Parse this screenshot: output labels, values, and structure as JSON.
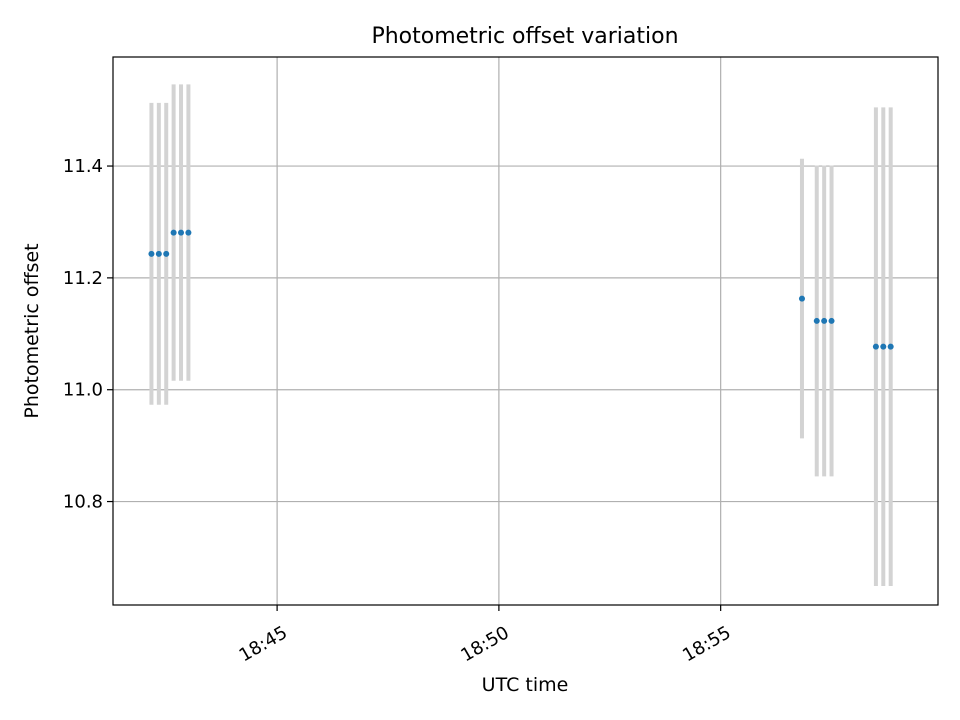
{
  "chart_data": {
    "type": "scatter",
    "title": "Photometric offset variation",
    "xlabel": "UTC time",
    "ylabel": "Photometric offset",
    "x_tick_labels": [
      "18:45",
      "18:50",
      "18:55"
    ],
    "y_tick_labels": [
      "10.8",
      "11.0",
      "11.2",
      "11.4"
    ],
    "yticks": [
      10.8,
      11.0,
      11.2,
      11.4
    ],
    "ylim": [
      10.615,
      11.595
    ],
    "xlim_minutes": [
      41.3,
      59.9
    ],
    "xticks_minutes": [
      45,
      50,
      55
    ],
    "grid": true,
    "colors": {
      "point": "#1f77b4",
      "errorbar": "#d3d3d3",
      "grid": "#b0b0b0"
    },
    "points": [
      {
        "t": "18:42:10",
        "y": 11.243,
        "err": 0.27
      },
      {
        "t": "18:42:20",
        "y": 11.243,
        "err": 0.27
      },
      {
        "t": "18:42:30",
        "y": 11.243,
        "err": 0.27
      },
      {
        "t": "18:42:40",
        "y": 11.281,
        "err": 0.265
      },
      {
        "t": "18:42:50",
        "y": 11.281,
        "err": 0.265
      },
      {
        "t": "18:43:00",
        "y": 11.281,
        "err": 0.265
      },
      {
        "t": "18:56:50",
        "y": 11.163,
        "err": 0.25
      },
      {
        "t": "18:57:10",
        "y": 11.123,
        "err": 0.278
      },
      {
        "t": "18:57:20",
        "y": 11.123,
        "err": 0.278
      },
      {
        "t": "18:57:30",
        "y": 11.123,
        "err": 0.278
      },
      {
        "t": "18:58:30",
        "y": 11.077,
        "err": 0.428
      },
      {
        "t": "18:58:40",
        "y": 11.077,
        "err": 0.428
      },
      {
        "t": "18:58:50",
        "y": 11.077,
        "err": 0.428
      }
    ]
  }
}
